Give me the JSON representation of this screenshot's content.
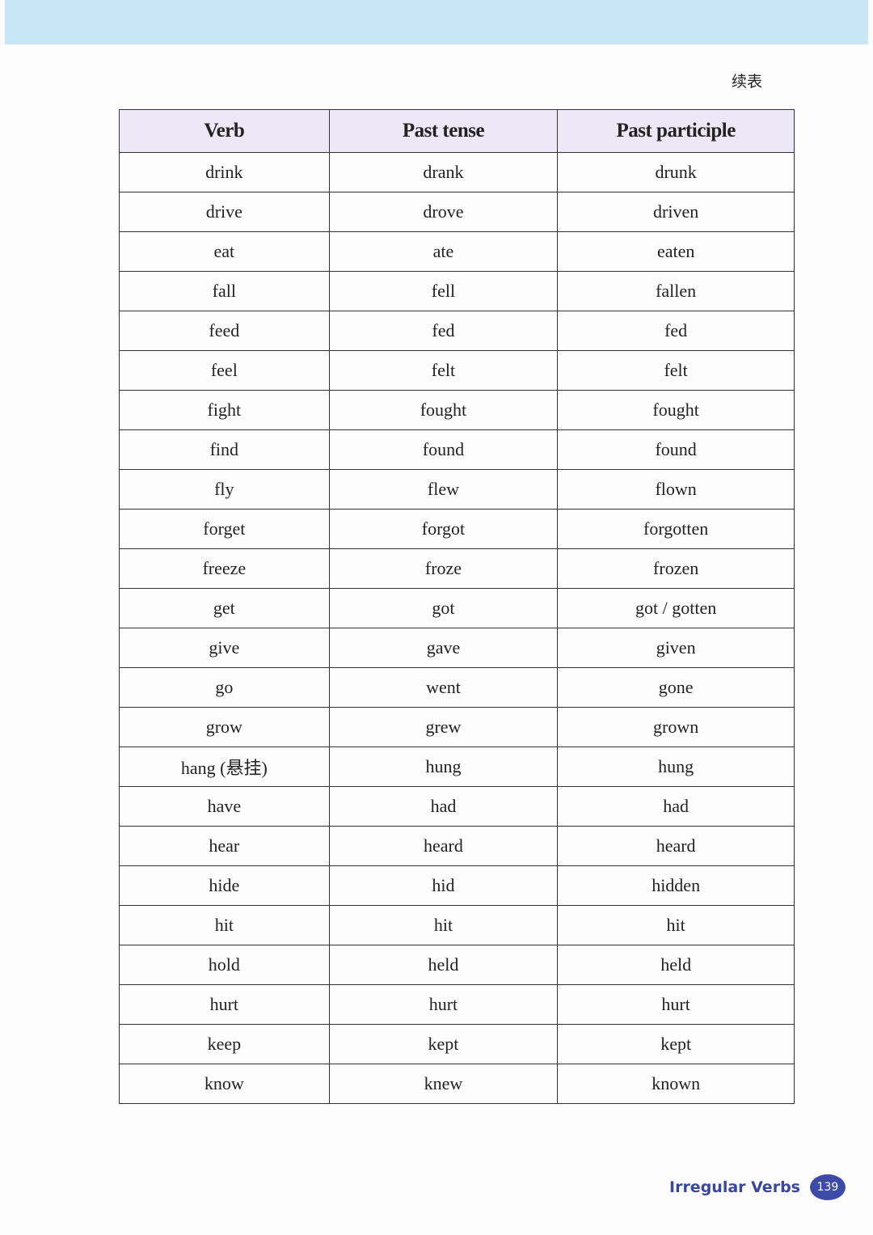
{
  "header": {
    "continued_label": "续表"
  },
  "table": {
    "columns": [
      "Verb",
      "Past tense",
      "Past participle"
    ],
    "rows": [
      [
        "drink",
        "drank",
        "drunk"
      ],
      [
        "drive",
        "drove",
        "driven"
      ],
      [
        "eat",
        "ate",
        "eaten"
      ],
      [
        "fall",
        "fell",
        "fallen"
      ],
      [
        "feed",
        "fed",
        "fed"
      ],
      [
        "feel",
        "felt",
        "felt"
      ],
      [
        "fight",
        "fought",
        "fought"
      ],
      [
        "find",
        "found",
        "found"
      ],
      [
        "fly",
        "flew",
        "flown"
      ],
      [
        "forget",
        "forgot",
        "forgotten"
      ],
      [
        "freeze",
        "froze",
        "frozen"
      ],
      [
        "get",
        "got",
        "got / gotten"
      ],
      [
        "give",
        "gave",
        "given"
      ],
      [
        "go",
        "went",
        "gone"
      ],
      [
        "grow",
        "grew",
        "grown"
      ],
      [
        "hang (悬挂)",
        "hung",
        "hung"
      ],
      [
        "have",
        "had",
        "had"
      ],
      [
        "hear",
        "heard",
        "heard"
      ],
      [
        "hide",
        "hid",
        "hidden"
      ],
      [
        "hit",
        "hit",
        "hit"
      ],
      [
        "hold",
        "held",
        "held"
      ],
      [
        "hurt",
        "hurt",
        "hurt"
      ],
      [
        "keep",
        "kept",
        "kept"
      ],
      [
        "know",
        "knew",
        "known"
      ]
    ]
  },
  "footer": {
    "section_title": "Irregular Verbs",
    "page_number": "139"
  },
  "colors": {
    "top_band": "#c8e7f6",
    "header_bg": "#ece8f7",
    "footer_accent": "#3d4aa8"
  }
}
